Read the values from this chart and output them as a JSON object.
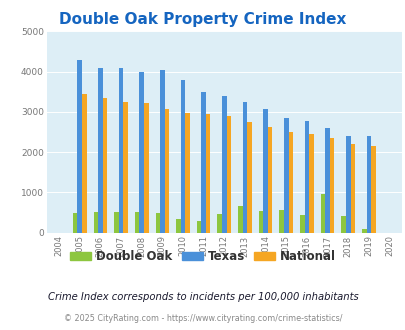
{
  "title": "Double Oak Property Crime Index",
  "years": [
    "2004",
    "2005",
    "2006",
    "2007",
    "2008",
    "2009",
    "2010",
    "2011",
    "2012",
    "2013",
    "2014",
    "2015",
    "2016",
    "2017",
    "2018",
    "2019",
    "2020"
  ],
  "double_oak": [
    0,
    500,
    510,
    520,
    510,
    490,
    350,
    290,
    460,
    660,
    530,
    570,
    450,
    970,
    415,
    90,
    0
  ],
  "texas": [
    0,
    4300,
    4080,
    4100,
    4000,
    4030,
    3800,
    3500,
    3390,
    3250,
    3060,
    2860,
    2780,
    2590,
    2400,
    2390,
    0
  ],
  "national": [
    0,
    3450,
    3340,
    3240,
    3210,
    3060,
    2960,
    2950,
    2900,
    2740,
    2620,
    2510,
    2460,
    2350,
    2200,
    2160,
    0
  ],
  "bar_width": 0.22,
  "double_oak_color": "#8dc63f",
  "texas_color": "#4a90d9",
  "national_color": "#f5a623",
  "bg_color": "#ddeef6",
  "ylim": [
    0,
    5000
  ],
  "yticks": [
    0,
    1000,
    2000,
    3000,
    4000,
    5000
  ],
  "title_fontsize": 11,
  "title_color": "#1565c0",
  "legend_labels": [
    "Double Oak",
    "Texas",
    "National"
  ],
  "subtitle": "Crime Index corresponds to incidents per 100,000 inhabitants",
  "footer": "© 2025 CityRating.com - https://www.cityrating.com/crime-statistics/",
  "subtitle_color": "#1a1a2e",
  "footer_color": "#888888",
  "footer_link_color": "#4a90d9"
}
